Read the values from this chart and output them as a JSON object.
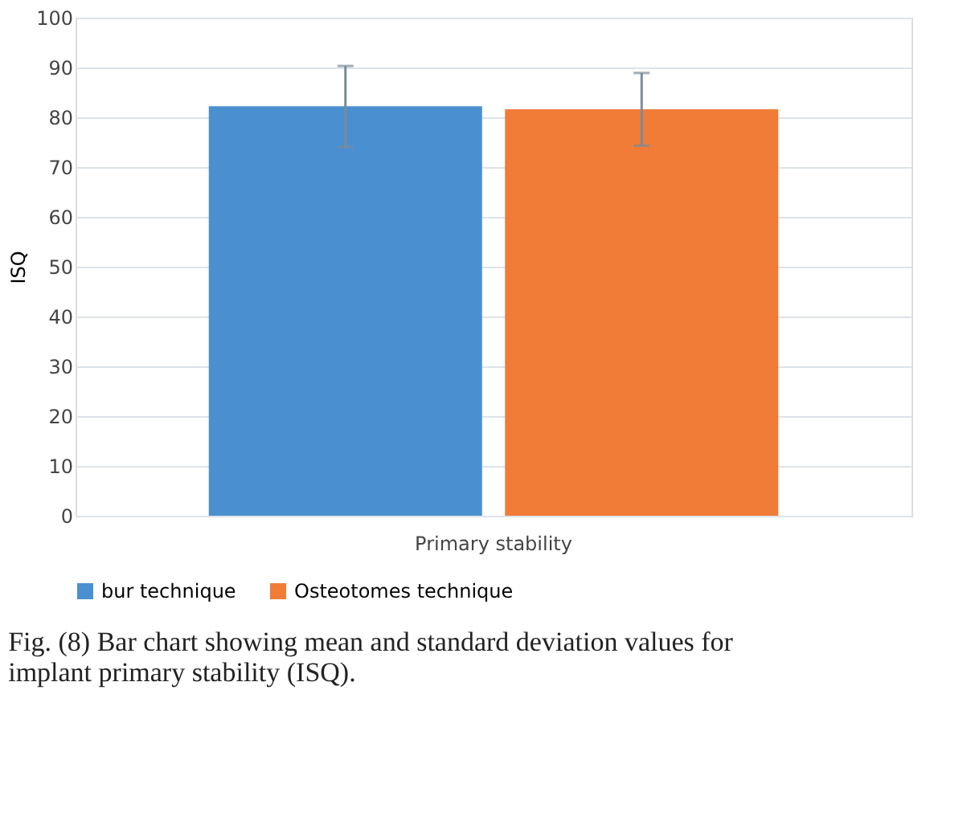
{
  "chart_data": {
    "type": "bar",
    "categories": [
      "Primary stability"
    ],
    "ylabel": "ISQ",
    "series": [
      {
        "name": "bur technique",
        "color": "#4a90d0",
        "values": [
          82.2
        ],
        "errors": [
          [
            74.0,
            90.3
          ]
        ]
      },
      {
        "name": "Osteotomes technique",
        "color": "#f07c38",
        "values": [
          81.6
        ],
        "errors": [
          [
            74.3,
            88.9
          ]
        ]
      }
    ],
    "ylim": [
      0,
      100
    ],
    "yticks": [
      0,
      10,
      20,
      30,
      40,
      50,
      60,
      70,
      80,
      90,
      100
    ],
    "grid": "y",
    "legend": "bottom",
    "annotations": [
      "Fig. (8) Bar chart showing mean and standard deviation values for implant primary stability (ISQ)."
    ]
  }
}
